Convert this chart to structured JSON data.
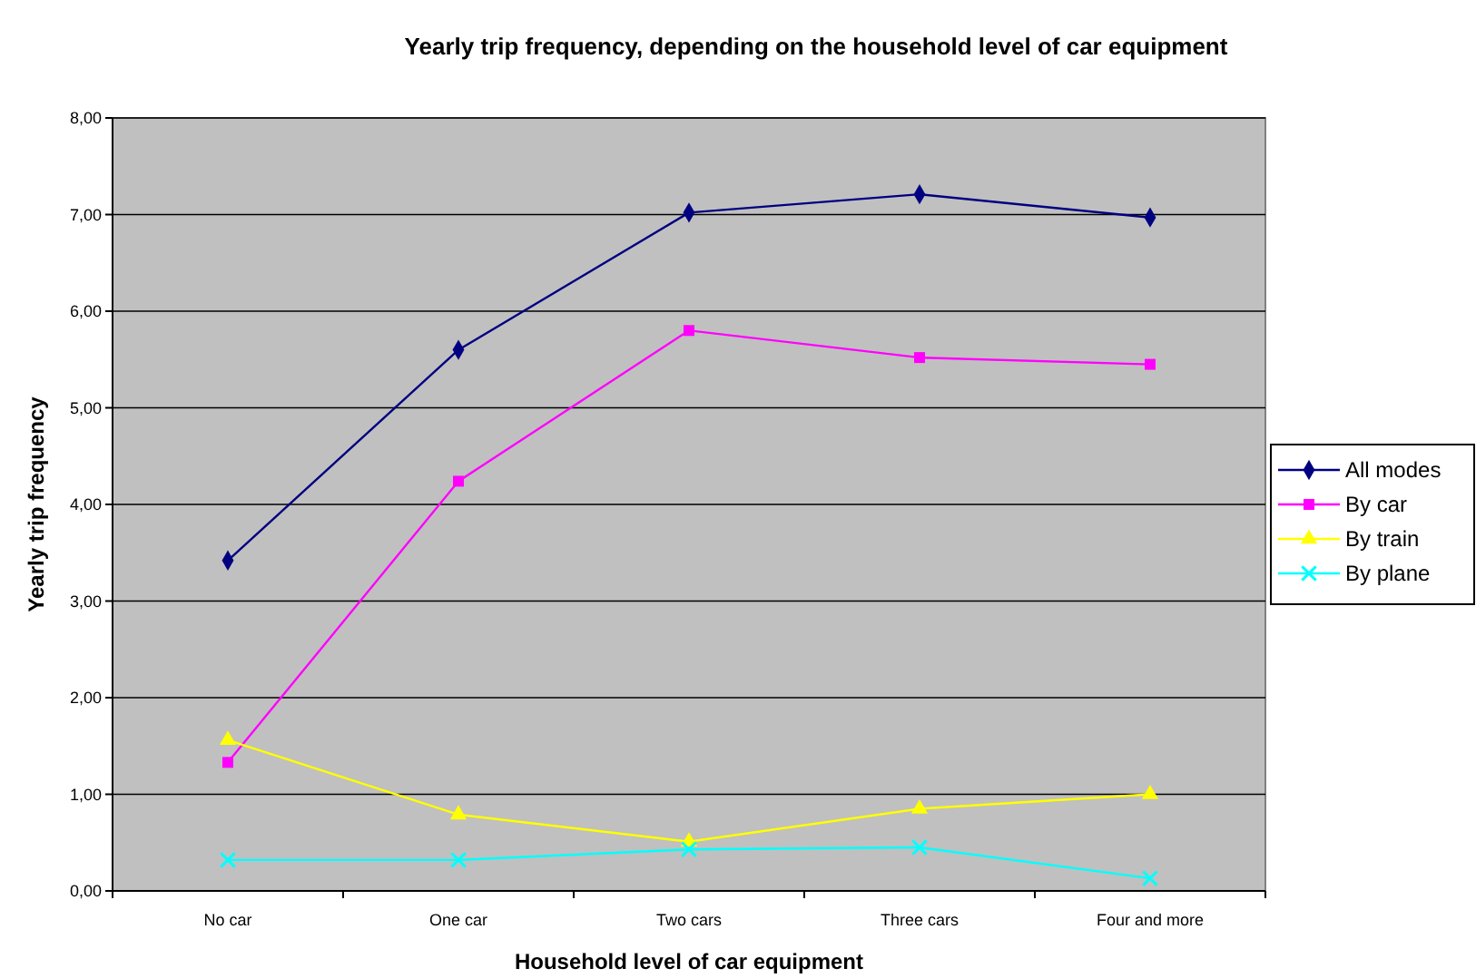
{
  "chart_data": {
    "type": "line",
    "title": "Yearly trip frequency, depending on the household level of car equipment",
    "xlabel": "Household level of car equipment",
    "ylabel": "Yearly trip frequency",
    "categories": [
      "No car",
      "One car",
      "Two cars",
      "Three cars",
      "Four and more"
    ],
    "series": [
      {
        "name": "All modes",
        "color": "#000080",
        "marker": "diamond",
        "values": [
          3.42,
          5.6,
          7.02,
          7.21,
          6.97
        ]
      },
      {
        "name": "By car",
        "color": "#ff00ff",
        "marker": "square",
        "values": [
          1.33,
          4.24,
          5.8,
          5.52,
          5.45
        ]
      },
      {
        "name": "By train",
        "color": "#ffff00",
        "marker": "triangle",
        "values": [
          1.56,
          0.79,
          0.51,
          0.85,
          1.0
        ]
      },
      {
        "name": "By plane",
        "color": "#00ffff",
        "marker": "cross",
        "values": [
          0.32,
          0.32,
          0.43,
          0.45,
          0.13
        ]
      }
    ],
    "ylim": [
      0,
      8
    ],
    "yticks": [
      {
        "value": 0,
        "label": "0,00"
      },
      {
        "value": 1,
        "label": "1,00"
      },
      {
        "value": 2,
        "label": "2,00"
      },
      {
        "value": 3,
        "label": "3,00"
      },
      {
        "value": 4,
        "label": "4,00"
      },
      {
        "value": 5,
        "label": "5,00"
      },
      {
        "value": 6,
        "label": "6,00"
      },
      {
        "value": 7,
        "label": "7,00"
      },
      {
        "value": 8,
        "label": "8,00"
      }
    ],
    "grid": "y",
    "legend": "right"
  }
}
